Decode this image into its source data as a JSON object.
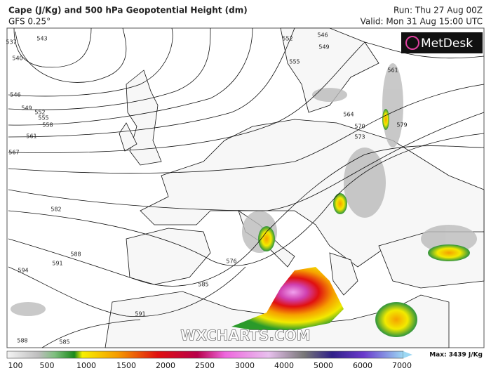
{
  "header": {
    "title": "Cape (J/Kg) and 500 hPa Geopotential Height (dm)",
    "model": "GFS 0.25°",
    "run": "Run: Thu 27 Aug 00Z",
    "valid": "Valid: Mon 31 Aug 15:00 UTC"
  },
  "logo": "MetDesk",
  "watermark": "WXCHARTS.COM",
  "map": {
    "contour_labels": [
      "537",
      "540",
      "543",
      "546",
      "549",
      "552",
      "555",
      "558",
      "561",
      "567",
      "582",
      "588",
      "591",
      "594",
      "585",
      "576",
      "552",
      "555",
      "546",
      "549",
      "561",
      "564",
      "570",
      "573",
      "579",
      "588",
      "585",
      "591"
    ]
  },
  "colorbar": {
    "labels": [
      100,
      500,
      1000,
      1500,
      2000,
      2500,
      3000,
      4000,
      5000,
      6000,
      7000
    ],
    "max_label": "Max: 3439 J/Kg"
  }
}
